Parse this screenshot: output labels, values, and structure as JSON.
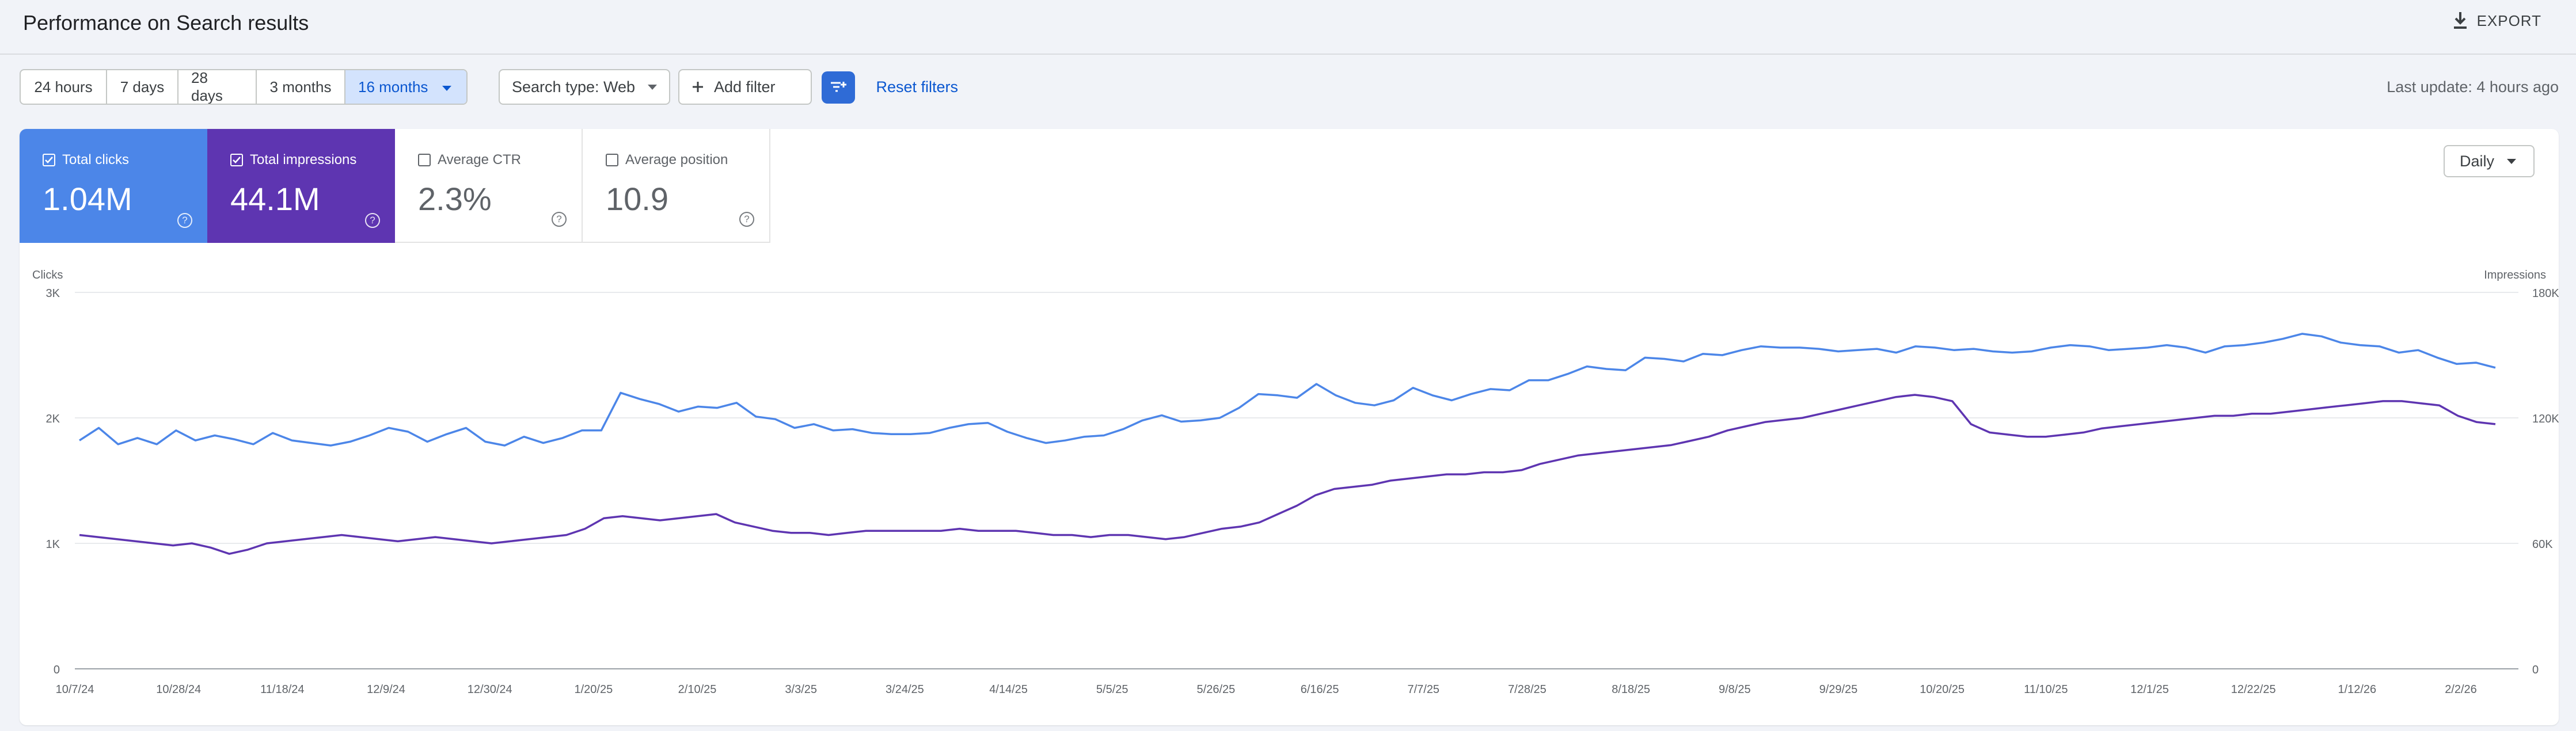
{
  "header": {
    "title": "Performance on Search results",
    "export_label": "EXPORT"
  },
  "toolbar": {
    "date_ranges": [
      "24 hours",
      "7 days",
      "28 days",
      "3 months"
    ],
    "date_range_selected": "16 months",
    "search_type": "Search type: Web",
    "add_filter": "Add filter",
    "reset_filters": "Reset filters",
    "last_update": "Last update: 4 hours ago"
  },
  "metrics": [
    {
      "label": "Total clicks",
      "value": "1.04M",
      "checked": true,
      "color": "#4c86e8"
    },
    {
      "label": "Total impressions",
      "value": "44.1M",
      "checked": true,
      "color": "#5e35b1"
    },
    {
      "label": "Average CTR",
      "value": "2.3%",
      "checked": false
    },
    {
      "label": "Average position",
      "value": "10.9",
      "checked": false
    }
  ],
  "granularity": "Daily",
  "colors": {
    "accent": "#0b57d0",
    "clicks": "#4c86e8",
    "impressions": "#5e35b1"
  },
  "chart_data": {
    "type": "line",
    "title": "",
    "y_left_label": "Clicks",
    "y_right_label": "Impressions",
    "y_left_ticks": [
      "0",
      "1K",
      "2K",
      "3K"
    ],
    "y_right_ticks": [
      "0",
      "60K",
      "120K",
      "180K"
    ],
    "ylim_left": [
      0,
      3000
    ],
    "ylim_right": [
      0,
      180000
    ],
    "x_ticks": [
      "10/7/24",
      "10/28/24",
      "11/18/24",
      "12/9/24",
      "12/30/24",
      "1/20/25",
      "2/10/25",
      "3/3/25",
      "3/24/25",
      "4/14/25",
      "5/5/25",
      "5/26/25",
      "6/16/25",
      "7/7/25",
      "7/28/25",
      "8/18/25",
      "9/8/25",
      "9/29/25",
      "10/20/25",
      "11/10/25",
      "12/1/25",
      "12/22/25",
      "1/12/26",
      "2/2/26"
    ],
    "series": [
      {
        "name": "Clicks",
        "axis": "left",
        "values": [
          1820,
          1920,
          1790,
          1840,
          1790,
          1900,
          1820,
          1860,
          1830,
          1790,
          1880,
          1820,
          1800,
          1780,
          1810,
          1860,
          1920,
          1890,
          1810,
          1870,
          1920,
          1810,
          1780,
          1850,
          1800,
          1840,
          1900,
          1900,
          2200,
          2150,
          2110,
          2050,
          2090,
          2080,
          2120,
          2010,
          1990,
          1920,
          1950,
          1900,
          1910,
          1880,
          1870,
          1870,
          1880,
          1920,
          1950,
          1960,
          1890,
          1840,
          1800,
          1820,
          1850,
          1860,
          1910,
          1980,
          2020,
          1970,
          1980,
          2000,
          2080,
          2190,
          2180,
          2160,
          2270,
          2180,
          2120,
          2100,
          2140,
          2240,
          2180,
          2140,
          2190,
          2230,
          2220,
          2300,
          2300,
          2350,
          2410,
          2390,
          2380,
          2480,
          2470,
          2450,
          2510,
          2500,
          2540,
          2570,
          2560,
          2560,
          2550,
          2530,
          2540,
          2550,
          2520,
          2570,
          2560,
          2540,
          2550,
          2530,
          2520,
          2530,
          2560,
          2580,
          2570,
          2540,
          2550,
          2560,
          2580,
          2560,
          2520,
          2570,
          2580,
          2600,
          2630,
          2670,
          2650,
          2600,
          2580,
          2570,
          2520,
          2540,
          2480,
          2430,
          2440,
          2400
        ]
      },
      {
        "name": "Impressions",
        "axis": "right",
        "values": [
          64000,
          63000,
          62000,
          61000,
          60000,
          59000,
          60000,
          58000,
          55000,
          57000,
          60000,
          61000,
          62000,
          63000,
          64000,
          63000,
          62000,
          61000,
          62000,
          63000,
          62000,
          61000,
          60000,
          61000,
          62000,
          63000,
          64000,
          67000,
          72000,
          73000,
          72000,
          71000,
          72000,
          73000,
          74000,
          70000,
          68000,
          66000,
          65000,
          65000,
          64000,
          65000,
          66000,
          66000,
          66000,
          66000,
          66000,
          67000,
          66000,
          66000,
          66000,
          65000,
          64000,
          64000,
          63000,
          64000,
          64000,
          63000,
          62000,
          63000,
          65000,
          67000,
          68000,
          70000,
          74000,
          78000,
          83000,
          86000,
          87000,
          88000,
          90000,
          91000,
          92000,
          93000,
          93000,
          94000,
          94000,
          95000,
          98000,
          100000,
          102000,
          103000,
          104000,
          105000,
          106000,
          107000,
          109000,
          111000,
          114000,
          116000,
          118000,
          119000,
          120000,
          122000,
          124000,
          126000,
          128000,
          130000,
          131000,
          130000,
          128000,
          117000,
          113000,
          112000,
          111000,
          111000,
          112000,
          113000,
          115000,
          116000,
          117000,
          118000,
          119000,
          120000,
          121000,
          121000,
          122000,
          122000,
          123000,
          124000,
          125000,
          126000,
          127000,
          128000,
          128000,
          127000,
          126000,
          121000,
          118000,
          117000
        ]
      }
    ]
  }
}
